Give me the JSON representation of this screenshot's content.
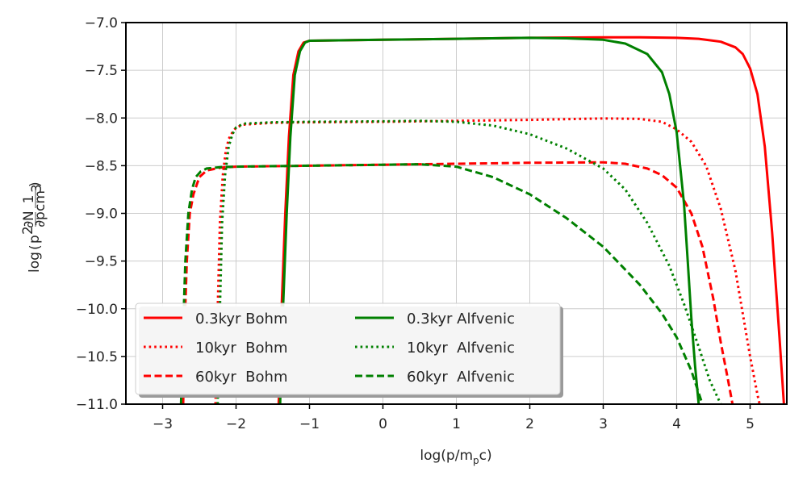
{
  "chart_data": {
    "type": "line",
    "xlabel": {
      "base": "log(p/m",
      "sub": "p",
      "tail": "c)"
    },
    "ylabel": {
      "prefix": "log",
      "p": "p",
      "exp": "2",
      "num1": "∂N",
      "den1": "∂p",
      "num2": "1",
      "den2": "cm",
      "den2_exp": "3"
    },
    "xlim": [
      -3.5,
      5.5
    ],
    "ylim": [
      -11.0,
      -7.0
    ],
    "xticks": [
      -3,
      -2,
      -1,
      0,
      1,
      2,
      3,
      4,
      5
    ],
    "xtick_labels": [
      "−3",
      "−2",
      "−1",
      "0",
      "1",
      "2",
      "3",
      "4",
      "5"
    ],
    "yticks": [
      -7.0,
      -7.5,
      -8.0,
      -8.5,
      -9.0,
      -9.5,
      -10.0,
      -10.5,
      -11.0
    ],
    "ytick_labels": [
      "−7.0",
      "−7.5",
      "−8.0",
      "−8.5",
      "−9.0",
      "−9.5",
      "−10.0",
      "−10.5",
      "−11.0"
    ],
    "grid": true,
    "legend_position": "lower-left",
    "legend_columns": 2,
    "series": [
      {
        "name": "0.3kyr Bohm",
        "color": "#ff0000",
        "dash": "solid",
        "x": [
          -1.42,
          -1.38,
          -1.33,
          -1.28,
          -1.22,
          -1.15,
          -1.08,
          -1.0,
          -0.5,
          0.0,
          1.0,
          2.0,
          3.0,
          3.5,
          4.0,
          4.3,
          4.6,
          4.8,
          4.9,
          5.0,
          5.1,
          5.2,
          5.3,
          5.4,
          5.46
        ],
        "y": [
          -11.0,
          -10.0,
          -9.0,
          -8.2,
          -7.55,
          -7.3,
          -7.21,
          -7.19,
          -7.185,
          -7.18,
          -7.17,
          -7.16,
          -7.155,
          -7.155,
          -7.16,
          -7.17,
          -7.2,
          -7.26,
          -7.33,
          -7.48,
          -7.75,
          -8.3,
          -9.2,
          -10.3,
          -11.0
        ]
      },
      {
        "name": "10kyr  Bohm",
        "color": "#ff0000",
        "dash": "dotted",
        "x": [
          -2.28,
          -2.25,
          -2.22,
          -2.18,
          -2.14,
          -2.1,
          -2.05,
          -2.0,
          -1.9,
          -1.5,
          -1.0,
          0.0,
          1.0,
          2.0,
          3.0,
          3.5,
          3.8,
          4.0,
          4.2,
          4.4,
          4.6,
          4.8,
          4.9,
          5.0,
          5.1,
          5.13
        ],
        "y": [
          -11.0,
          -10.0,
          -9.1,
          -8.6,
          -8.35,
          -8.22,
          -8.15,
          -8.1,
          -8.07,
          -8.05,
          -8.045,
          -8.04,
          -8.03,
          -8.02,
          -8.005,
          -8.01,
          -8.04,
          -8.12,
          -8.25,
          -8.5,
          -8.95,
          -9.6,
          -10.05,
          -10.5,
          -10.9,
          -11.0
        ]
      },
      {
        "name": "60kyr  Bohm",
        "color": "#ff0000",
        "dash": "dashed",
        "x": [
          -2.72,
          -2.7,
          -2.67,
          -2.63,
          -2.58,
          -2.5,
          -2.4,
          -2.2,
          -2.0,
          -1.0,
          0.0,
          1.0,
          2.0,
          3.0,
          3.3,
          3.6,
          3.8,
          4.0,
          4.2,
          4.35,
          4.5,
          4.6,
          4.7,
          4.76
        ],
        "y": [
          -11.0,
          -10.2,
          -9.5,
          -9.0,
          -8.8,
          -8.62,
          -8.55,
          -8.52,
          -8.51,
          -8.5,
          -8.49,
          -8.48,
          -8.47,
          -8.465,
          -8.48,
          -8.53,
          -8.6,
          -8.73,
          -9.0,
          -9.35,
          -9.9,
          -10.35,
          -10.75,
          -11.0
        ]
      },
      {
        "name": "0.3kyr Alfvenic",
        "color": "#008000",
        "dash": "solid",
        "x": [
          -1.4,
          -1.36,
          -1.31,
          -1.26,
          -1.2,
          -1.13,
          -1.06,
          -1.0,
          -0.5,
          0.0,
          1.0,
          2.0,
          2.5,
          3.0,
          3.3,
          3.6,
          3.8,
          3.9,
          4.0,
          4.1,
          4.15,
          4.2,
          4.25,
          4.3
        ],
        "y": [
          -11.0,
          -10.0,
          -9.0,
          -8.2,
          -7.55,
          -7.3,
          -7.21,
          -7.19,
          -7.185,
          -7.18,
          -7.17,
          -7.16,
          -7.165,
          -7.18,
          -7.22,
          -7.33,
          -7.52,
          -7.75,
          -8.15,
          -8.9,
          -9.5,
          -10.1,
          -10.6,
          -11.0
        ]
      },
      {
        "name": "10kyr  Alfvenic",
        "color": "#008000",
        "dash": "dotted",
        "x": [
          -2.25,
          -2.22,
          -2.19,
          -2.15,
          -2.1,
          -2.05,
          -2.0,
          -1.9,
          -1.5,
          -1.0,
          0.0,
          0.5,
          1.0,
          1.5,
          2.0,
          2.5,
          3.0,
          3.3,
          3.6,
          3.9,
          4.1,
          4.3,
          4.45,
          4.6
        ],
        "y": [
          -11.0,
          -10.0,
          -9.1,
          -8.6,
          -8.3,
          -8.17,
          -8.1,
          -8.06,
          -8.045,
          -8.04,
          -8.035,
          -8.03,
          -8.04,
          -8.08,
          -8.17,
          -8.32,
          -8.53,
          -8.75,
          -9.1,
          -9.55,
          -9.95,
          -10.4,
          -10.75,
          -11.0
        ]
      },
      {
        "name": "60kyr  Alfvenic",
        "color": "#008000",
        "dash": "dashed",
        "x": [
          -2.75,
          -2.72,
          -2.69,
          -2.65,
          -2.6,
          -2.55,
          -2.48,
          -2.4,
          -2.2,
          -2.0,
          -1.0,
          0.0,
          0.5,
          1.0,
          1.5,
          2.0,
          2.5,
          3.0,
          3.5,
          3.8,
          4.0,
          4.2,
          4.35
        ],
        "y": [
          -11.0,
          -10.2,
          -9.5,
          -9.0,
          -8.75,
          -8.62,
          -8.56,
          -8.53,
          -8.515,
          -8.51,
          -8.5,
          -8.49,
          -8.485,
          -8.51,
          -8.62,
          -8.8,
          -9.05,
          -9.35,
          -9.75,
          -10.05,
          -10.3,
          -10.65,
          -11.0
        ]
      }
    ]
  }
}
